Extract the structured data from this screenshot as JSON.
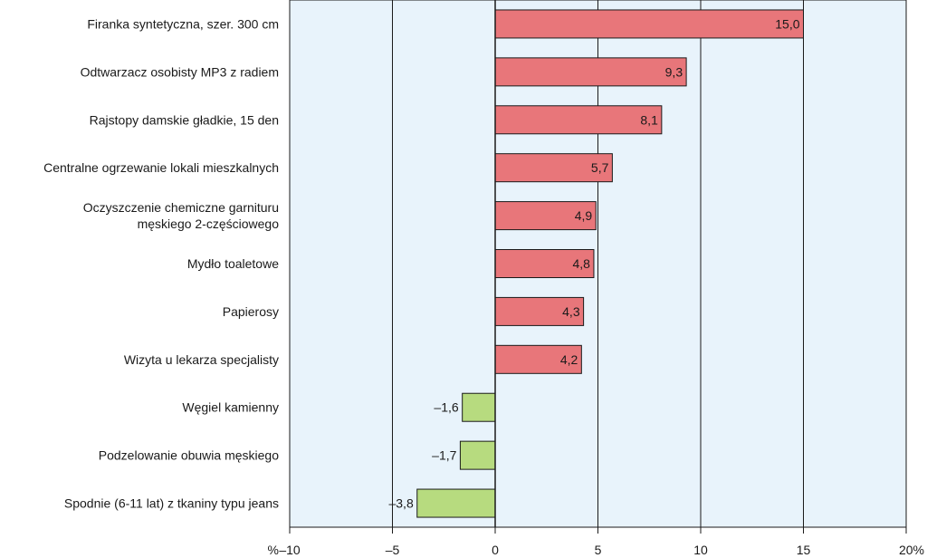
{
  "chart_data": {
    "type": "bar",
    "orientation": "horizontal",
    "title": "",
    "xlabel": "",
    "ylabel": "",
    "unit_label": "%",
    "xlim": [
      -10,
      20
    ],
    "xticks": [
      -10,
      -5,
      0,
      5,
      10,
      15,
      20
    ],
    "xtick_labels": [
      "–10",
      "–5",
      "0",
      "5",
      "10",
      "15",
      "20%"
    ],
    "grid": true,
    "categories": [
      "Firanka syntetyczna, szer. 300 cm",
      "Odtwarzacz osobisty MP3 z radiem",
      "Rajstopy damskie gładkie, 15 den",
      "Centralne ogrzewanie lokali mieszkalnych",
      "Oczyszczenie chemiczne garnituru|męskiego 2-częściowego",
      "Mydło toaletowe",
      "Papierosy",
      "Wizyta u lekarza specjalisty",
      "Węgiel kamienny",
      "Podzelowanie obuwia męskiego",
      "Spodnie (6-11 lat) z tkaniny typu jeans"
    ],
    "values": [
      15.0,
      9.3,
      8.1,
      5.7,
      4.9,
      4.8,
      4.3,
      4.2,
      -1.6,
      -1.7,
      -3.8
    ],
    "value_labels": [
      "15,0",
      "9,3",
      "8,1",
      "5,7",
      "4,9",
      "4,8",
      "4,3",
      "4,2",
      "–1,6",
      "–1,7",
      "–3,8"
    ],
    "colors": {
      "positive": "#e8767a",
      "negative": "#b7db7f",
      "plot_background": "#e8f3fb",
      "bar_outline": "#1a1a1a",
      "grid": "#1a1a1a",
      "text": "#1a1a1a"
    }
  }
}
